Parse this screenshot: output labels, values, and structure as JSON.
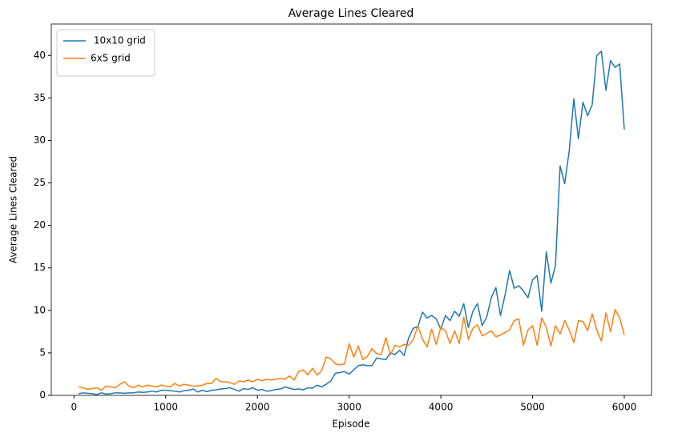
{
  "chart_data": {
    "type": "line",
    "title": "Average Lines Cleared",
    "x_label": "Episode",
    "y_label": "Average Lines Cleared",
    "x": [
      50,
      100,
      150,
      200,
      250,
      300,
      350,
      400,
      450,
      500,
      550,
      600,
      650,
      700,
      750,
      800,
      850,
      900,
      950,
      1000,
      1050,
      1100,
      1150,
      1200,
      1250,
      1300,
      1350,
      1400,
      1450,
      1500,
      1550,
      1600,
      1650,
      1700,
      1750,
      1800,
      1850,
      1900,
      1950,
      2000,
      2050,
      2100,
      2150,
      2200,
      2250,
      2300,
      2350,
      2400,
      2450,
      2500,
      2550,
      2600,
      2650,
      2700,
      2750,
      2800,
      2850,
      2900,
      2950,
      3000,
      3050,
      3100,
      3150,
      3200,
      3250,
      3300,
      3350,
      3400,
      3450,
      3500,
      3550,
      3600,
      3650,
      3700,
      3750,
      3800,
      3850,
      3900,
      3950,
      4000,
      4050,
      4100,
      4150,
      4200,
      4250,
      4300,
      4350,
      4400,
      4450,
      4500,
      4550,
      4600,
      4650,
      4700,
      4750,
      4800,
      4850,
      4900,
      4950,
      5000,
      5050,
      5100,
      5150,
      5200,
      5250,
      5300,
      5350,
      5400,
      5450,
      5500,
      5550,
      5600,
      5650,
      5700,
      5750,
      5800,
      5850,
      5900,
      5950,
      6000
    ],
    "series": [
      {
        "name": " 10x10 grid",
        "color": "#1f77b4",
        "values": [
          0.2,
          0.3,
          0.25,
          0.2,
          0.1,
          0.3,
          0.15,
          0.2,
          0.3,
          0.3,
          0.25,
          0.3,
          0.3,
          0.4,
          0.35,
          0.4,
          0.5,
          0.4,
          0.6,
          0.6,
          0.55,
          0.5,
          0.4,
          0.55,
          0.6,
          0.75,
          0.4,
          0.6,
          0.45,
          0.6,
          0.65,
          0.75,
          0.8,
          0.9,
          0.7,
          0.5,
          0.8,
          0.7,
          0.9,
          0.6,
          0.7,
          0.5,
          0.55,
          0.7,
          0.75,
          1.0,
          0.85,
          0.7,
          0.75,
          0.65,
          0.9,
          0.85,
          1.2,
          1.0,
          1.3,
          1.7,
          2.6,
          2.7,
          2.8,
          2.5,
          3.0,
          3.5,
          3.6,
          3.5,
          3.5,
          4.4,
          4.3,
          4.2,
          5.0,
          4.8,
          5.3,
          4.7,
          6.8,
          7.9,
          8.1,
          9.8,
          9.1,
          9.4,
          9.0,
          7.8,
          9.4,
          8.8,
          9.9,
          9.3,
          10.8,
          8.0,
          9.9,
          10.8,
          8.2,
          9.2,
          11.5,
          12.7,
          9.4,
          11.8,
          14.7,
          12.6,
          12.9,
          12.3,
          11.5,
          13.6,
          14.1,
          9.9,
          16.9,
          13.2,
          15.3,
          27.0,
          24.9,
          28.8,
          34.9,
          30.2,
          34.5,
          32.9,
          34.2,
          40.0,
          40.5,
          35.9,
          39.4,
          38.6,
          39.0,
          31.3
        ]
      },
      {
        "name": "6x5 grid",
        "color": "#ff7f0e",
        "values": [
          1.0,
          0.9,
          0.7,
          0.8,
          0.9,
          0.6,
          1.1,
          1.0,
          0.9,
          1.3,
          1.6,
          1.1,
          0.9,
          1.2,
          1.0,
          1.2,
          1.1,
          1.0,
          1.2,
          1.1,
          1.0,
          1.4,
          1.1,
          1.3,
          1.2,
          1.1,
          1.1,
          1.2,
          1.4,
          1.4,
          2.0,
          1.6,
          1.6,
          1.5,
          1.3,
          1.7,
          1.6,
          1.8,
          1.6,
          1.9,
          1.7,
          1.9,
          1.8,
          1.9,
          2.0,
          1.9,
          2.3,
          1.8,
          2.8,
          3.0,
          2.4,
          3.2,
          2.4,
          2.9,
          4.5,
          4.3,
          3.7,
          3.6,
          3.7,
          6.1,
          4.5,
          5.8,
          4.2,
          4.6,
          5.5,
          4.9,
          4.8,
          6.8,
          4.8,
          5.9,
          5.7,
          6.0,
          5.9,
          6.6,
          8.2,
          6.6,
          5.7,
          7.8,
          6.0,
          8.0,
          7.6,
          6.1,
          7.6,
          6.1,
          9.2,
          6.6,
          7.9,
          8.3,
          7.0,
          7.3,
          7.6,
          6.9,
          7.1,
          7.4,
          7.7,
          8.8,
          9.0,
          5.9,
          7.7,
          8.2,
          5.9,
          9.1,
          8.0,
          5.8,
          8.2,
          7.2,
          8.8,
          7.7,
          6.2,
          8.8,
          8.7,
          7.6,
          9.6,
          7.7,
          6.4,
          9.7,
          7.5,
          10.1,
          9.1,
          7.1
        ]
      }
    ],
    "xlim": [
      -247.5,
      6297.5
    ],
    "ylim": [
      0,
      43.7
    ],
    "xticks": [
      0,
      1000,
      2000,
      3000,
      4000,
      5000,
      6000
    ],
    "yticks": [
      0,
      5,
      10,
      15,
      20,
      25,
      30,
      35,
      40
    ],
    "legend": "upper left",
    "grid": false
  }
}
